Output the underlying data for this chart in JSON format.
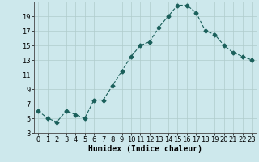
{
  "x": [
    0,
    1,
    2,
    3,
    4,
    5,
    6,
    7,
    8,
    9,
    10,
    11,
    12,
    13,
    14,
    15,
    16,
    17,
    18,
    19,
    20,
    21,
    22,
    23
  ],
  "y": [
    6,
    5,
    4.5,
    6,
    5.5,
    5,
    7.5,
    7.5,
    9.5,
    11.5,
    13.5,
    15,
    15.5,
    17.5,
    19,
    20.5,
    20.5,
    19.5,
    17,
    16.5,
    15,
    14,
    13.5,
    13
  ],
  "line_color": "#1a5f5a",
  "marker": "D",
  "marker_size": 2.5,
  "bg_color": "#cde8ec",
  "grid_color": "#b0cccc",
  "xlabel": "Humidex (Indice chaleur)",
  "ylim": [
    3,
    21
  ],
  "yticks": [
    3,
    5,
    7,
    9,
    11,
    13,
    15,
    17,
    19
  ],
  "xlim": [
    -0.5,
    23.5
  ],
  "xticks": [
    0,
    1,
    2,
    3,
    4,
    5,
    6,
    7,
    8,
    9,
    10,
    11,
    12,
    13,
    14,
    15,
    16,
    17,
    18,
    19,
    20,
    21,
    22,
    23
  ],
  "label_fontsize": 7,
  "tick_fontsize": 6
}
